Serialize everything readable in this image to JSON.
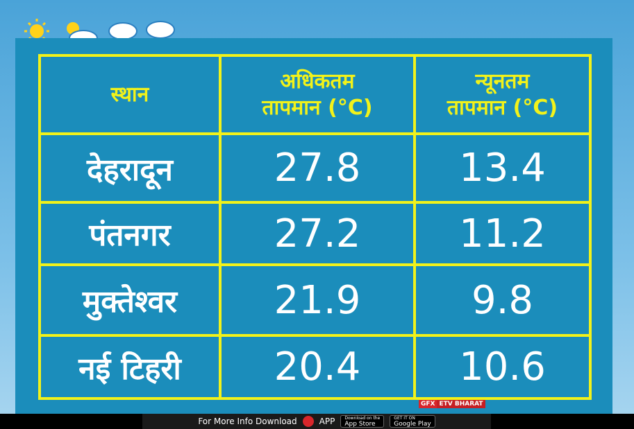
{
  "table": {
    "header": [
      [
        "स्थान"
      ],
      [
        "अधिकतम",
        "तापमान (°C)"
      ],
      [
        "न्यूनतम",
        "तापमान (°C)"
      ]
    ],
    "rows": [
      [
        "देहरादून",
        "27.8",
        "13.4"
      ],
      [
        "पंतनगर",
        "27.2",
        "11.2"
      ],
      [
        "मुक्तेश्वर",
        "21.9",
        "9.8"
      ],
      [
        "नई टिहरी",
        "20.4",
        "10.6"
      ]
    ]
  },
  "credit": {
    "gfx": "GFX",
    "brand": "ETV BHARAT"
  },
  "footer": {
    "text": "For More Info Download",
    "app": "APP",
    "appstore_small": "Download on the",
    "appstore": "App Store",
    "play_small": "GET IT ON",
    "play": "Google Play"
  }
}
